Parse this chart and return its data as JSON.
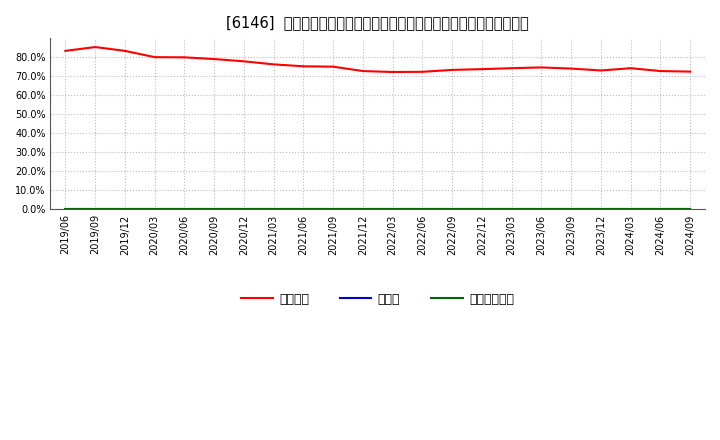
{
  "title": "[6146]  自己資本、のれん、繰延税金資産の総資産に対する比率の推移",
  "xlabel_dates": [
    "2019/06",
    "2019/09",
    "2019/12",
    "2020/03",
    "2020/06",
    "2020/09",
    "2020/12",
    "2021/03",
    "2021/06",
    "2021/09",
    "2021/12",
    "2022/03",
    "2022/06",
    "2022/09",
    "2022/12",
    "2023/03",
    "2023/06",
    "2023/09",
    "2023/12",
    "2024/03",
    "2024/06",
    "2024/09"
  ],
  "equity_ratio": [
    0.833,
    0.853,
    0.833,
    0.8,
    0.799,
    0.79,
    0.778,
    0.762,
    0.752,
    0.75,
    0.727,
    0.722,
    0.723,
    0.733,
    0.737,
    0.742,
    0.746,
    0.74,
    0.73,
    0.742,
    0.727,
    0.724
  ],
  "goodwill_ratio": [
    0.0,
    0.0,
    0.0,
    0.0,
    0.0,
    0.0,
    0.0,
    0.0,
    0.0,
    0.0,
    0.0,
    0.0,
    0.0,
    0.0,
    0.0,
    0.0,
    0.0,
    0.0,
    0.0,
    0.0,
    0.0,
    0.0
  ],
  "deferred_tax_ratio": [
    0.0,
    0.0,
    0.0,
    0.0,
    0.0,
    0.0,
    0.0,
    0.0,
    0.0,
    0.0,
    0.0,
    0.0,
    0.0,
    0.0,
    0.0,
    0.0,
    0.0,
    0.0,
    0.0,
    0.0,
    0.0,
    0.0
  ],
  "equity_color": "#ff0000",
  "goodwill_color": "#0000cc",
  "deferred_tax_color": "#006600",
  "legend_labels": [
    "自己資本",
    "のれん",
    "繰延税金資産"
  ],
  "ylim": [
    0.0,
    0.9
  ],
  "yticks": [
    0.0,
    0.1,
    0.2,
    0.3,
    0.4,
    0.5,
    0.6,
    0.7,
    0.8
  ],
  "background_color": "#ffffff",
  "plot_bg_color": "#ffffff",
  "grid_color": "#bbbbbb",
  "title_fontsize": 10.5,
  "tick_fontsize": 7,
  "legend_fontsize": 9
}
